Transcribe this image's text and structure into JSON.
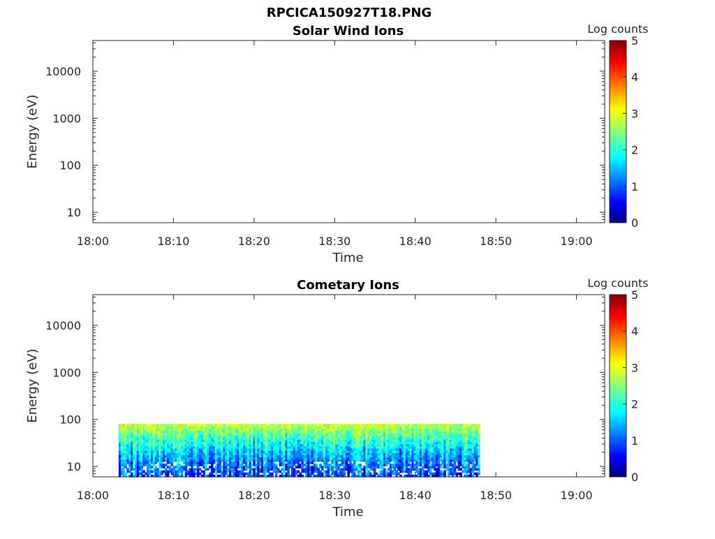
{
  "page_title": "RPCICA150927T18.PNG",
  "colors": {
    "axis": "#262626",
    "colormap": [
      "#00007f",
      "#0000ff",
      "#007fff",
      "#00ffff",
      "#7fff7f",
      "#ffff00",
      "#ff7f00",
      "#ff0000",
      "#7f0000"
    ]
  },
  "chart_data": [
    {
      "type": "heatmap",
      "title": "Solar Wind Ions",
      "xlabel": "Time",
      "ylabel": "Energy (eV)",
      "x_tick_labels": [
        "18:00",
        "18:10",
        "18:20",
        "18:30",
        "18:40",
        "18:50",
        "19:00"
      ],
      "x_ticks_min": [
        0,
        10,
        20,
        30,
        40,
        50,
        60
      ],
      "xlim_min": [
        0,
        63.5
      ],
      "y_scale": "log",
      "y_tick_labels": [
        "10",
        "100",
        "1000",
        "10000"
      ],
      "y_ticks": [
        10,
        100,
        1000,
        10000
      ],
      "ylim": [
        6,
        45000
      ],
      "colorbar": {
        "label": "Log counts",
        "range": [
          0,
          5
        ],
        "tick_labels": [
          "0",
          "1",
          "2",
          "3",
          "4",
          "5"
        ]
      },
      "data_present": false
    },
    {
      "type": "heatmap",
      "title": "Cometary Ions",
      "xlabel": "Time",
      "ylabel": "Energy (eV)",
      "x_tick_labels": [
        "18:00",
        "18:10",
        "18:20",
        "18:30",
        "18:40",
        "18:50",
        "19:00"
      ],
      "x_ticks_min": [
        0,
        10,
        20,
        30,
        40,
        50,
        60
      ],
      "xlim_min": [
        0,
        63.5
      ],
      "y_scale": "log",
      "y_tick_labels": [
        "10",
        "100",
        "1000",
        "10000"
      ],
      "y_ticks": [
        10,
        100,
        1000,
        10000
      ],
      "ylim": [
        6,
        45000
      ],
      "colorbar": {
        "label": "Log counts",
        "range": [
          0,
          5
        ],
        "tick_labels": [
          "0",
          "1",
          "2",
          "3",
          "4",
          "5"
        ]
      },
      "data_present": true,
      "data_extent": {
        "time_start_min": 3.2,
        "time_end_min": 48.0,
        "energy_min_eV": 6,
        "energy_max_eV": 80
      },
      "typical_log_counts": {
        "high_energy_band": 2.8,
        "low_energy_band": 0.9
      }
    }
  ]
}
